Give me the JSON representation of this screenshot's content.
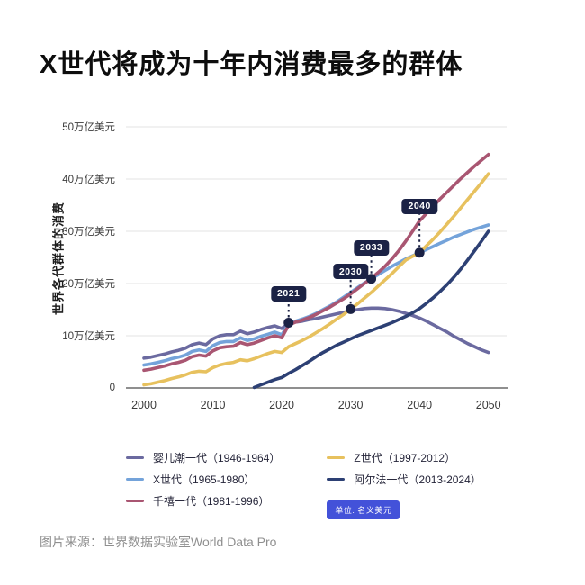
{
  "title": "X世代将成为十年内消费最多的群体",
  "source": "图片来源：世界数据实验室World Data Pro",
  "unit_badge": "单位: 名义美元",
  "colors": {
    "title": "#0d0d0d",
    "grid": "#e3e3e3",
    "baseline": "#6a6a6a",
    "axis_text": "#3a3a3a",
    "annotation": "#1b2245",
    "badge": "#4352d9",
    "source_text": "#8f8f8f"
  },
  "chart_data": {
    "type": "line",
    "title": "X世代将成为十年内消费最多的群体",
    "xlabel": "",
    "ylabel": "世界各代群体的消费",
    "x_range": [
      2000,
      2050
    ],
    "y_range": [
      0,
      50
    ],
    "grid": "horizontal-only",
    "legend_position": "bottom",
    "y_ticks": [
      {
        "value": 0,
        "label": "0"
      },
      {
        "value": 10,
        "label": "10万亿美元"
      },
      {
        "value": 20,
        "label": "20万亿美元"
      },
      {
        "value": 30,
        "label": "30万亿美元"
      },
      {
        "value": 40,
        "label": "40万亿美元"
      },
      {
        "value": 50,
        "label": "50万亿美元"
      }
    ],
    "x_ticks": [
      2000,
      2010,
      2020,
      2030,
      2040,
      2050
    ],
    "series": [
      {
        "name": "婴儿潮一代",
        "period": "1946-1964",
        "label": "婴儿潮一代（1946-1964）",
        "color": "#6b6aa0",
        "start_year": 2000,
        "values": [
          5.7,
          5.9,
          6.2,
          6.5,
          6.9,
          7.2,
          7.6,
          8.3,
          8.6,
          8.3,
          9.4,
          10.0,
          10.2,
          10.2,
          10.9,
          10.4,
          10.7,
          11.2,
          11.6,
          11.9,
          11.4,
          12.4,
          12.6,
          12.8,
          13.1,
          13.3,
          13.6,
          13.9,
          14.2,
          14.5,
          14.8,
          15.0,
          15.2,
          15.3,
          15.3,
          15.2,
          15.0,
          14.7,
          14.3,
          13.9,
          13.4,
          12.8,
          12.1,
          11.4,
          10.7,
          9.9,
          9.2,
          8.5,
          7.9,
          7.3,
          6.8
        ]
      },
      {
        "name": "X世代",
        "period": "1965-1980",
        "label": "X世代（1965-1980）",
        "color": "#74a3da",
        "start_year": 2000,
        "values": [
          4.4,
          4.6,
          4.9,
          5.2,
          5.6,
          5.9,
          6.3,
          7.0,
          7.3,
          7.0,
          8.1,
          8.7,
          8.9,
          8.9,
          9.6,
          9.1,
          9.4,
          9.9,
          10.3,
          10.7,
          10.2,
          12.2,
          12.8,
          13.2,
          13.7,
          14.3,
          15.0,
          15.7,
          16.5,
          17.4,
          18.3,
          19.2,
          20.1,
          20.9,
          21.7,
          22.5,
          23.3,
          24.0,
          24.7,
          25.3,
          25.9,
          26.5,
          27.1,
          27.7,
          28.3,
          28.9,
          29.4,
          29.9,
          30.4,
          30.8,
          31.2
        ]
      },
      {
        "name": "千禧一代",
        "period": "1981-1996",
        "label": "千禧一代（1981-1996）",
        "color": "#a95672",
        "start_year": 2000,
        "values": [
          3.4,
          3.6,
          3.9,
          4.2,
          4.6,
          4.9,
          5.3,
          6.0,
          6.3,
          6.1,
          7.1,
          7.7,
          7.9,
          8.0,
          8.7,
          8.3,
          8.6,
          9.1,
          9.6,
          10.0,
          9.6,
          12.0,
          12.6,
          13.0,
          13.5,
          14.1,
          14.8,
          15.5,
          16.3,
          17.1,
          18.0,
          19.0,
          20.0,
          21.0,
          22.1,
          23.3,
          24.7,
          26.3,
          28.1,
          30.0,
          32.0,
          33.4,
          34.8,
          36.2,
          37.5,
          38.8,
          40.1,
          41.3,
          42.5,
          43.6,
          44.7
        ]
      },
      {
        "name": "Z世代",
        "period": "1997-2012",
        "label": "Z世代（1997-2012）",
        "color": "#e7c15e",
        "start_year": 2000,
        "values": [
          0.6,
          0.8,
          1.1,
          1.4,
          1.8,
          2.1,
          2.5,
          3.0,
          3.2,
          3.1,
          3.9,
          4.4,
          4.7,
          4.9,
          5.4,
          5.2,
          5.6,
          6.1,
          6.6,
          7.0,
          6.8,
          7.9,
          8.5,
          9.1,
          9.8,
          10.6,
          11.4,
          12.3,
          13.2,
          14.1,
          15.1,
          16.1,
          17.2,
          18.3,
          19.5,
          20.7,
          21.9,
          23.2,
          24.5,
          25.2,
          25.9,
          27.2,
          28.5,
          29.9,
          31.4,
          32.9,
          34.5,
          36.1,
          37.7,
          39.3,
          41.0
        ]
      },
      {
        "name": "阿尔法一代",
        "period": "2013-2024",
        "label": "阿尔法一代（2013-2024）",
        "color": "#2d4074",
        "start_year": 2016,
        "values": [
          0.1,
          0.6,
          1.1,
          1.6,
          2.0,
          2.8,
          3.5,
          4.3,
          5.1,
          6.0,
          6.8,
          7.5,
          8.2,
          8.8,
          9.4,
          10.0,
          10.5,
          11.0,
          11.5,
          12.0,
          12.5,
          13.1,
          13.7,
          14.4,
          15.2,
          16.2,
          17.3,
          18.5,
          19.8,
          21.2,
          22.8,
          24.5,
          26.3,
          28.1,
          30.0
        ]
      }
    ],
    "annotations": [
      {
        "label": "2021",
        "year": 2021,
        "value": 12.5,
        "gap": 24
      },
      {
        "label": "2030",
        "year": 2030,
        "value": 15.1,
        "gap": 33
      },
      {
        "label": "2033",
        "year": 2033,
        "value": 20.9,
        "gap": 26
      },
      {
        "label": "2040",
        "year": 2040,
        "value": 25.9,
        "gap": 43
      }
    ],
    "legend_columns": [
      [
        0,
        1,
        2
      ],
      [
        3,
        4
      ]
    ]
  }
}
